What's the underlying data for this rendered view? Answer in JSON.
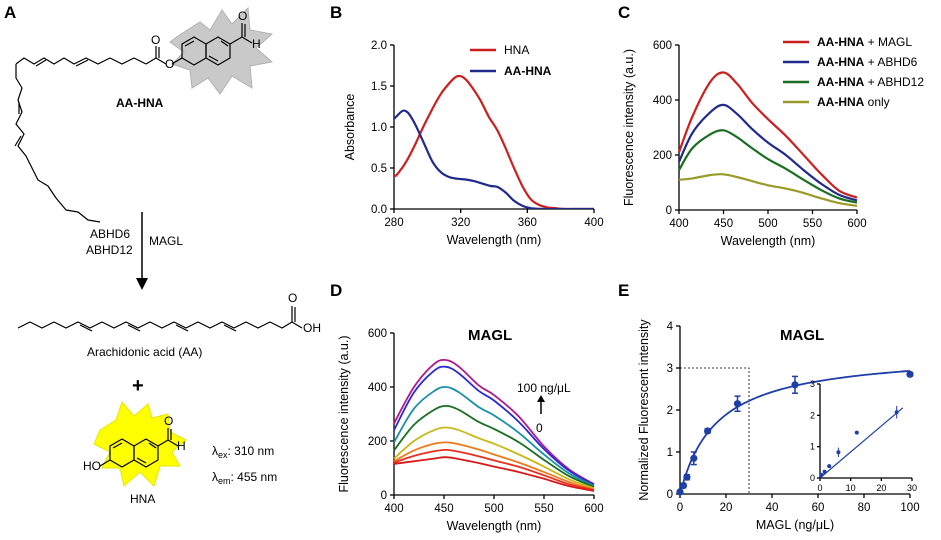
{
  "panel_labels": [
    "A",
    "B",
    "C",
    "D",
    "E"
  ],
  "scheme": {
    "substrate_label": "AA-HNA",
    "enzymes_left": [
      "ABHD6",
      "ABHD12"
    ],
    "enzyme_right": "MAGL",
    "product_label": "Arachidonic acid (AA)",
    "plus": "+",
    "fluorophore_label": "HNA",
    "lambda_ex": "λ",
    "lambda_ex_sub": "ex",
    "lambda_ex_val": ": 310 nm",
    "lambda_em": "λ",
    "lambda_em_sub": "em",
    "lambda_em_val": ": 455 nm",
    "atom_O": "O",
    "atom_H": "H",
    "atom_OH": "OH",
    "atom_HO": "HO"
  },
  "chart_data": [
    {
      "panel": "B",
      "type": "line",
      "xlabel": "Wavelength (nm)",
      "ylabel": "Absorbance",
      "xlim": [
        280,
        400
      ],
      "ylim": [
        0,
        2.0
      ],
      "xticks": [
        280,
        320,
        360,
        400
      ],
      "yticks": [
        0.0,
        0.5,
        1.0,
        1.5,
        2.0
      ],
      "ytick_labels": [
        "0.0",
        "0.5",
        "1.0",
        "1.5",
        "2.0"
      ],
      "legend": "top-right",
      "series": [
        {
          "name": "HNA",
          "bold": false,
          "color": "#cc1f1f",
          "x": [
            275,
            280,
            283,
            288,
            293,
            298,
            303,
            308,
            313,
            317,
            320,
            323,
            327,
            332,
            337,
            342,
            347,
            352,
            357,
            362,
            367,
            372,
            377,
            382,
            390,
            400
          ],
          "y": [
            0.45,
            0.4,
            0.45,
            0.6,
            0.8,
            1.02,
            1.22,
            1.4,
            1.53,
            1.61,
            1.62,
            1.58,
            1.48,
            1.32,
            1.12,
            0.96,
            0.74,
            0.5,
            0.28,
            0.12,
            0.05,
            0.02,
            0.01,
            0.0,
            0.0,
            0.0
          ]
        },
        {
          "name": "AA-HNA",
          "bold": true,
          "color": "#1f2a8c",
          "x": [
            275,
            280,
            284,
            286,
            289,
            293,
            298,
            303,
            308,
            313,
            318,
            323,
            328,
            333,
            338,
            342,
            347,
            352,
            357,
            362,
            370,
            380,
            400
          ],
          "y": [
            1.02,
            1.1,
            1.18,
            1.2,
            1.16,
            1.02,
            0.8,
            0.58,
            0.45,
            0.39,
            0.37,
            0.36,
            0.34,
            0.31,
            0.28,
            0.27,
            0.2,
            0.1,
            0.04,
            0.01,
            0.0,
            0.0,
            0.0
          ]
        }
      ]
    },
    {
      "panel": "C",
      "type": "line",
      "xlabel": "Wavelength (nm)",
      "ylabel": "Fluorescence intensity (a.u.)",
      "xlim": [
        400,
        600
      ],
      "ylim": [
        0,
        600
      ],
      "xticks": [
        400,
        450,
        500,
        550,
        600
      ],
      "yticks": [
        0,
        200,
        400,
        600
      ],
      "legend": "top-right",
      "series": [
        {
          "name_bold": "AA-HNA",
          "name_rest": " + MAGL",
          "color": "#cc1f1f",
          "y": [
            210,
            340,
            465,
            500,
            460,
            390,
            330,
            270,
            200,
            130,
            70,
            45
          ]
        },
        {
          "name_bold": "AA-HNA",
          "name_rest": " + ABHD6",
          "color": "#1f2a8c",
          "y": [
            175,
            280,
            355,
            382,
            350,
            295,
            245,
            200,
            145,
            95,
            55,
            35
          ]
        },
        {
          "name_bold": "AA-HNA",
          "name_rest": " + ABHD12",
          "color": "#1a6e20",
          "y": [
            145,
            225,
            275,
            290,
            265,
            225,
            185,
            150,
            110,
            72,
            42,
            27
          ]
        },
        {
          "name_bold": "AA-HNA",
          "name_rest": " only",
          "color": "#9a9a2a",
          "y": [
            110,
            115,
            127,
            130,
            120,
            105,
            90,
            78,
            62,
            42,
            25,
            15
          ]
        }
      ],
      "x": [
        400,
        415,
        435,
        450,
        465,
        482,
        500,
        520,
        540,
        560,
        580,
        600
      ]
    },
    {
      "panel": "D",
      "type": "line",
      "title": "MAGL",
      "xlabel": "Wavelength (nm)",
      "ylabel": "Fluorescence intensity (a.u.)",
      "xlim": [
        400,
        600
      ],
      "ylim": [
        0,
        600
      ],
      "xticks": [
        400,
        450,
        500,
        550,
        600
      ],
      "yticks": [
        0,
        200,
        400,
        600
      ],
      "annotation_top": "100 ng/μL",
      "annotation_bottom": "0",
      "x": [
        400,
        420,
        440,
        452,
        465,
        485,
        500,
        525,
        550,
        575,
        600
      ],
      "series": [
        {
          "color": "#b0188f",
          "y": [
            265,
            400,
            485,
            500,
            475,
            405,
            370,
            290,
            180,
            95,
            40
          ]
        },
        {
          "color": "#2a2ad0",
          "y": [
            240,
            380,
            460,
            475,
            450,
            385,
            350,
            270,
            170,
            90,
            38
          ]
        },
        {
          "color": "#1a8fa8",
          "y": [
            195,
            320,
            385,
            400,
            380,
            325,
            295,
            230,
            150,
            80,
            34
          ]
        },
        {
          "color": "#1a6e20",
          "y": [
            165,
            260,
            315,
            330,
            315,
            270,
            245,
            195,
            130,
            70,
            30
          ]
        },
        {
          "color": "#c8b81a",
          "y": [
            135,
            200,
            240,
            250,
            240,
            210,
            190,
            150,
            105,
            58,
            25
          ]
        },
        {
          "color": "#ef7a1a",
          "y": [
            125,
            165,
            190,
            195,
            188,
            168,
            150,
            120,
            85,
            48,
            20
          ]
        },
        {
          "color": "#e83020",
          "y": [
            120,
            145,
            162,
            167,
            160,
            143,
            128,
            104,
            73,
            40,
            18
          ]
        },
        {
          "color": "#d81a1a",
          "y": [
            115,
            125,
            135,
            140,
            133,
            118,
            105,
            85,
            60,
            33,
            15
          ]
        }
      ]
    },
    {
      "panel": "E",
      "type": "scatter",
      "title": "MAGL",
      "xlabel": "MAGL (ng/μL)",
      "ylabel": "Normalized Fluorescent intensity",
      "xlim": [
        0,
        100
      ],
      "ylim": [
        0,
        4
      ],
      "xticks": [
        0,
        20,
        40,
        60,
        80,
        100
      ],
      "yticks": [
        0,
        1,
        2,
        3,
        4
      ],
      "color": "#1f3fa8",
      "points": {
        "x": [
          0,
          1.5,
          3,
          6,
          12,
          25,
          50,
          100
        ],
        "y": [
          0.05,
          0.2,
          0.4,
          0.85,
          1.5,
          2.15,
          2.6,
          2.85
        ],
        "err": [
          0.02,
          0.05,
          0.06,
          0.15,
          0.05,
          0.18,
          0.2,
          0.04
        ]
      },
      "fit": {
        "model": "hyperbolic",
        "ymax": 3.4,
        "k": 16
      },
      "inset": {
        "xlim": [
          0,
          30
        ],
        "ylim": [
          0,
          3
        ],
        "xticks": [
          0,
          10,
          20,
          30
        ],
        "yticks": [
          0,
          1,
          2,
          3
        ],
        "points": {
          "x": [
            0.5,
            1.5,
            3,
            6,
            12,
            25
          ],
          "y": [
            0.1,
            0.2,
            0.38,
            0.82,
            1.45,
            2.1
          ],
          "err": [
            0.02,
            0.04,
            0.05,
            0.15,
            0.03,
            0.2
          ]
        },
        "fit": {
          "slope": 0.083,
          "intercept": 0.0
        }
      }
    }
  ]
}
